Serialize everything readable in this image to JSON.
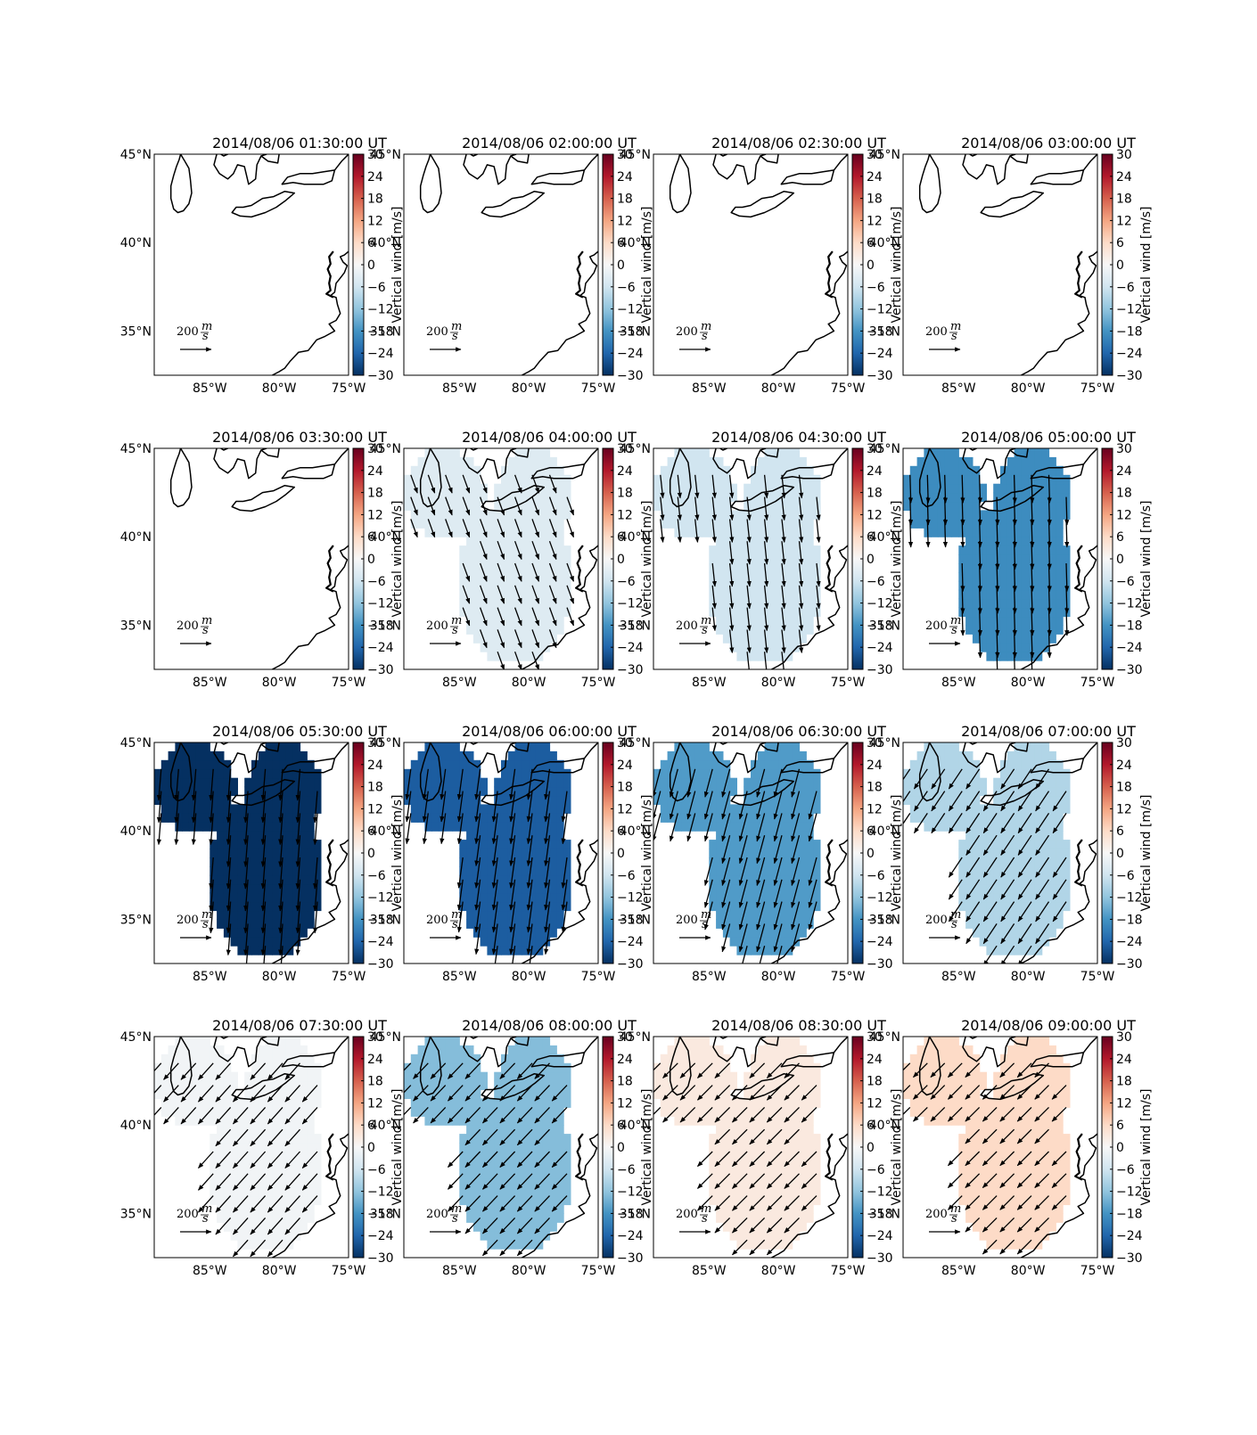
{
  "chart_data": {
    "type": "heatmap",
    "layout": "4x4 grid of map panels with quiver arrows and vertical colorbars",
    "colormap": "RdBu_r",
    "colorbar": {
      "label": "Vertical wind [m/s]",
      "ticks": [
        "30",
        "24",
        "18",
        "12",
        "6",
        "0",
        "−6",
        "−12",
        "−18",
        "−24",
        "−30"
      ],
      "range": [
        -30,
        30
      ]
    },
    "x_ticks": [
      "85°W",
      "80°W",
      "75°W"
    ],
    "y_ticks": [
      "45°N",
      "40°N",
      "35°N"
    ],
    "lon_range": [
      -89,
      -75
    ],
    "lat_range": [
      32.5,
      45
    ],
    "quiver_key": {
      "value": "200",
      "unit": "m/s"
    },
    "panels": [
      {
        "title": "2014/08/06 01:30:00 UT",
        "vertical_wind": null,
        "wind_u": 0,
        "wind_v": 0
      },
      {
        "title": "2014/08/06 02:00:00 UT",
        "vertical_wind": null,
        "wind_u": 0,
        "wind_v": 0
      },
      {
        "title": "2014/08/06 02:30:00 UT",
        "vertical_wind": null,
        "wind_u": 0,
        "wind_v": 0
      },
      {
        "title": "2014/08/06 03:00:00 UT",
        "vertical_wind": null,
        "wind_u": 0,
        "wind_v": 0
      },
      {
        "title": "2014/08/06 03:30:00 UT",
        "vertical_wind": null,
        "wind_u": 0,
        "wind_v": 0
      },
      {
        "title": "2014/08/06 04:00:00 UT",
        "vertical_wind": -4,
        "wind_u": 40,
        "wind_v": -110
      },
      {
        "title": "2014/08/06 04:30:00 UT",
        "vertical_wind": -6,
        "wind_u": 15,
        "wind_v": -140
      },
      {
        "title": "2014/08/06 05:00:00 UT",
        "vertical_wind": -19,
        "wind_u": 5,
        "wind_v": -170
      },
      {
        "title": "2014/08/06 05:30:00 UT",
        "vertical_wind": -30,
        "wind_u": -15,
        "wind_v": -190
      },
      {
        "title": "2014/08/06 06:00:00 UT",
        "vertical_wind": -25,
        "wind_u": -25,
        "wind_v": -185
      },
      {
        "title": "2014/08/06 06:30:00 UT",
        "vertical_wind": -17,
        "wind_u": -45,
        "wind_v": -170
      },
      {
        "title": "2014/08/06 07:00:00 UT",
        "vertical_wind": -9,
        "wind_u": -80,
        "wind_v": -120
      },
      {
        "title": "2014/08/06 07:30:00 UT",
        "vertical_wind": -1,
        "wind_u": -90,
        "wind_v": -100
      },
      {
        "title": "2014/08/06 08:00:00 UT",
        "vertical_wind": -13,
        "wind_u": -90,
        "wind_v": -95
      },
      {
        "title": "2014/08/06 08:30:00 UT",
        "vertical_wind": 3,
        "wind_u": -90,
        "wind_v": -90
      },
      {
        "title": "2014/08/06 09:00:00 UT",
        "vertical_wind": 6,
        "wind_u": -85,
        "wind_v": -85
      }
    ]
  }
}
